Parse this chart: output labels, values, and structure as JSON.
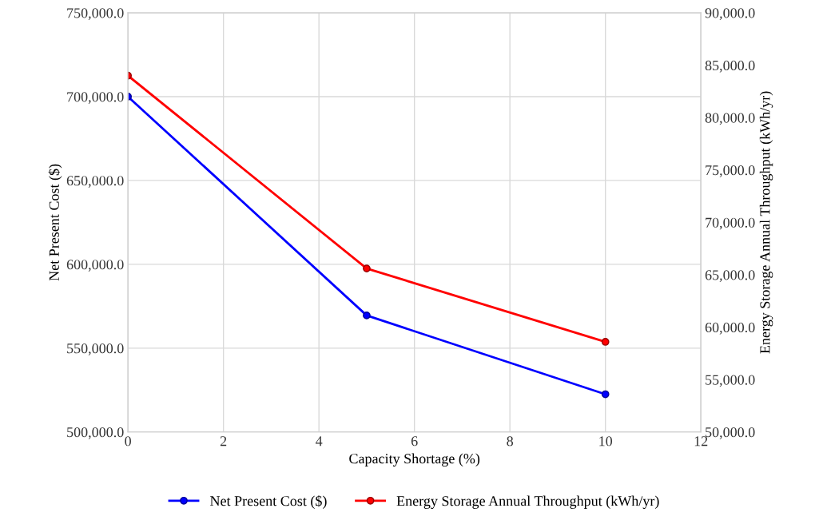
{
  "chart_data": {
    "type": "line",
    "xlabel": "Capacity Shortage (%)",
    "ylabel": "Net Present Cost ($)",
    "y2label": "Energy Storage Annual Throughput (kWh/yr)",
    "x": [
      0,
      5,
      10
    ],
    "series": [
      {
        "name": "Net Present Cost ($)",
        "color": "#0000ff",
        "values": [
          700000,
          569500,
          522500
        ]
      },
      {
        "name": "Energy Storage Annual Throughput (kWh/yr)",
        "color": "#ff0000",
        "values": [
          84000,
          65600,
          58600
        ],
        "axis": "y2"
      }
    ],
    "xlim": [
      0,
      12
    ],
    "xticks": [
      0,
      2,
      4,
      6,
      8,
      10,
      12
    ],
    "ylim": [
      500000,
      750000
    ],
    "yticks": [
      {
        "value": 500000,
        "label": "500,000.0"
      },
      {
        "value": 550000,
        "label": "550,000.0"
      },
      {
        "value": 600000,
        "label": "600,000.0"
      },
      {
        "value": 650000,
        "label": "650,000.0"
      },
      {
        "value": 700000,
        "label": "700,000.0"
      },
      {
        "value": 750000,
        "label": "750,000.0"
      }
    ],
    "y2lim": [
      50000,
      90000
    ],
    "y2ticks": [
      {
        "value": 50000,
        "label": "50,000.0"
      },
      {
        "value": 55000,
        "label": "55,000.0"
      },
      {
        "value": 60000,
        "label": "60,000.0"
      },
      {
        "value": 65000,
        "label": "65,000.0"
      },
      {
        "value": 70000,
        "label": "70,000.0"
      },
      {
        "value": 75000,
        "label": "75,000.0"
      },
      {
        "value": 80000,
        "label": "80,000.0"
      },
      {
        "value": 85000,
        "label": "85,000.0"
      },
      {
        "value": 90000,
        "label": "90,000.0"
      }
    ],
    "grid": true,
    "legend": "bottom",
    "marker": "circle",
    "line_style": "solid"
  }
}
